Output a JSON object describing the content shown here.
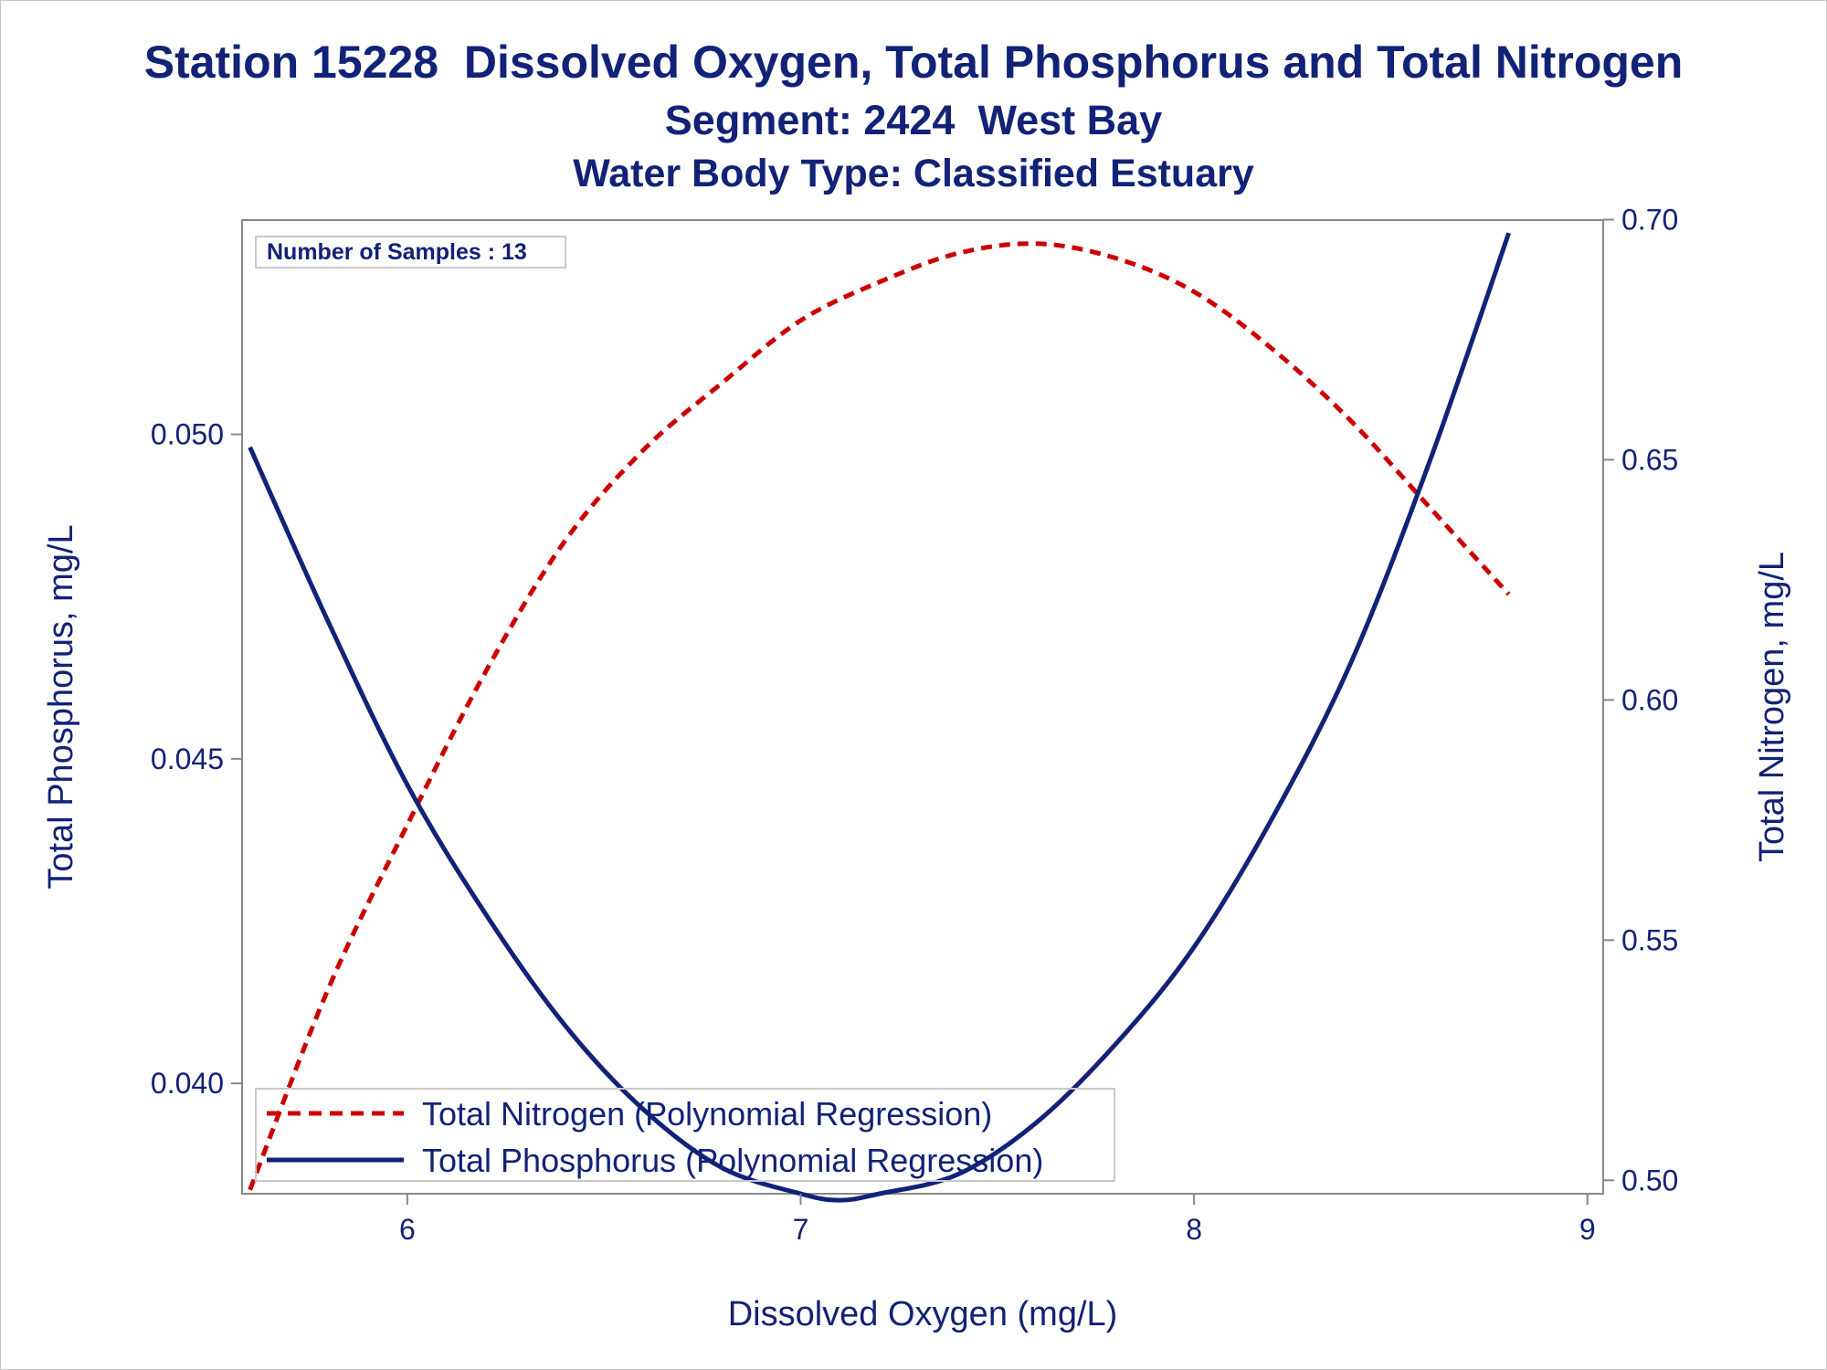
{
  "titles": {
    "line1": "Station 15228  Dissolved Oxygen, Total Phosphorus and Total Nitrogen",
    "line2": "Segment: 2424  West Bay",
    "line3": "Water Body Type: Classified Estuary"
  },
  "colors": {
    "text": "#112277",
    "nitrogen": "#cc0000",
    "phosphorus": "#112277",
    "axis": "#888888"
  },
  "chart_data": {
    "type": "line",
    "title": "Station 15228  Dissolved Oxygen, Total Phosphorus and Total Nitrogen",
    "subtitle": [
      "Segment: 2424  West Bay",
      "Water Body Type: Classified Estuary"
    ],
    "xlabel": "Dissolved Oxygen (mg/L)",
    "ylabel_left": "Total Phosphorus, mg/L",
    "ylabel_right": "Total Nitrogen, mg/L",
    "xlim": [
      5.58,
      9.04
    ],
    "ylim_left": [
      0.0383,
      0.0533
    ],
    "ylim_right": [
      0.4972,
      0.6999
    ],
    "x_ticks": [
      6,
      7,
      8,
      9
    ],
    "x_tick_labels": [
      "6",
      "7",
      "8",
      "9"
    ],
    "y_left_ticks": [
      0.04,
      0.045,
      0.05
    ],
    "y_left_tick_labels": [
      "0.040",
      "0.045",
      "0.050"
    ],
    "y_right_ticks": [
      0.5,
      0.55,
      0.6,
      0.65,
      0.7
    ],
    "y_right_tick_labels": [
      "0.50",
      "0.55",
      "0.60",
      "0.65",
      "0.70"
    ],
    "grid": false,
    "annotation": "Number of Samples : 13",
    "legend_position": "bottom-left, inside plot",
    "series": [
      {
        "name": "Total Nitrogen (Polynomial Regression)",
        "axis": "right",
        "style": "dashed",
        "color": "#cc0000",
        "x": [
          5.6,
          5.8,
          6.0,
          6.2,
          6.4,
          6.6,
          6.8,
          7.0,
          7.2,
          7.4,
          7.6,
          7.8,
          8.0,
          8.2,
          8.4,
          8.6,
          8.8
        ],
        "y": [
          0.498,
          0.54,
          0.574,
          0.606,
          0.633,
          0.652,
          0.666,
          0.679,
          0.687,
          0.693,
          0.695,
          0.692,
          0.685,
          0.673,
          0.658,
          0.64,
          0.622
        ]
      },
      {
        "name": "Total Phosphorus (Polynomial Regression)",
        "axis": "left",
        "style": "solid",
        "color": "#112277",
        "x": [
          5.6,
          5.8,
          6.0,
          6.2,
          6.4,
          6.6,
          6.8,
          7.0,
          7.1,
          7.2,
          7.4,
          7.6,
          7.8,
          8.0,
          8.2,
          8.4,
          8.6,
          8.8
        ],
        "y": [
          0.0498,
          0.0471,
          0.0446,
          0.0426,
          0.0409,
          0.0396,
          0.0387,
          0.0383,
          0.0382,
          0.0383,
          0.0386,
          0.0394,
          0.0406,
          0.0421,
          0.0441,
          0.0465,
          0.0496,
          0.0531
        ]
      }
    ]
  }
}
